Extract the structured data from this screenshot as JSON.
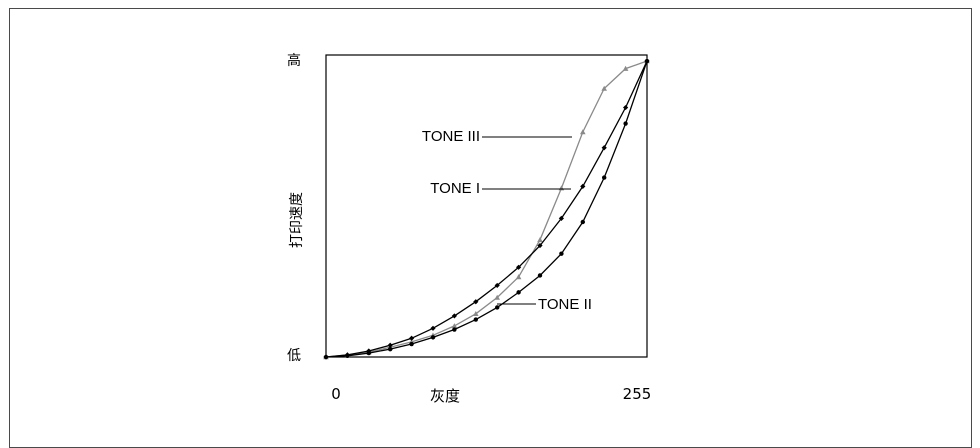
{
  "chart_data": {
    "type": "line",
    "title": "",
    "xlabel": "灰度",
    "ylabel": "打印速度",
    "x_ticks": [
      "0",
      "255"
    ],
    "y_ticks": {
      "low": "低",
      "high": "高"
    },
    "xlim": [
      0,
      255
    ],
    "ylim": [
      0,
      100
    ],
    "grid": false,
    "series": [
      {
        "name": "TONE III",
        "color": "#8a8a8a",
        "marker": "triangle",
        "x": [
          0,
          17,
          34,
          51,
          68,
          85,
          102,
          119,
          136,
          153,
          170,
          187,
          204,
          221,
          238,
          255
        ],
        "y": [
          0,
          0.7,
          1.6,
          3.2,
          5.0,
          7.2,
          10.3,
          14.3,
          19.7,
          26.5,
          38.8,
          55.9,
          74.5,
          88.9,
          95.5,
          98.0
        ]
      },
      {
        "name": "TONE I",
        "color": "#000000",
        "marker": "diamond",
        "x": [
          0,
          17,
          34,
          51,
          68,
          85,
          102,
          119,
          136,
          153,
          170,
          187,
          204,
          221,
          238,
          255
        ],
        "y": [
          0,
          0.7,
          2.0,
          3.9,
          6.2,
          9.5,
          13.6,
          18.3,
          23.7,
          29.7,
          36.9,
          45.9,
          56.5,
          69.3,
          82.6,
          98.0
        ]
      },
      {
        "name": "TONE II",
        "color": "#000000",
        "marker": "circle",
        "x": [
          0,
          17,
          34,
          51,
          68,
          85,
          102,
          119,
          136,
          153,
          170,
          187,
          204,
          221,
          238,
          255
        ],
        "y": [
          0,
          0.4,
          1.3,
          2.6,
          4.3,
          6.5,
          9.1,
          12.4,
          16.4,
          21.4,
          27.0,
          34.2,
          44.7,
          59.4,
          77.3,
          98.0
        ]
      }
    ]
  }
}
